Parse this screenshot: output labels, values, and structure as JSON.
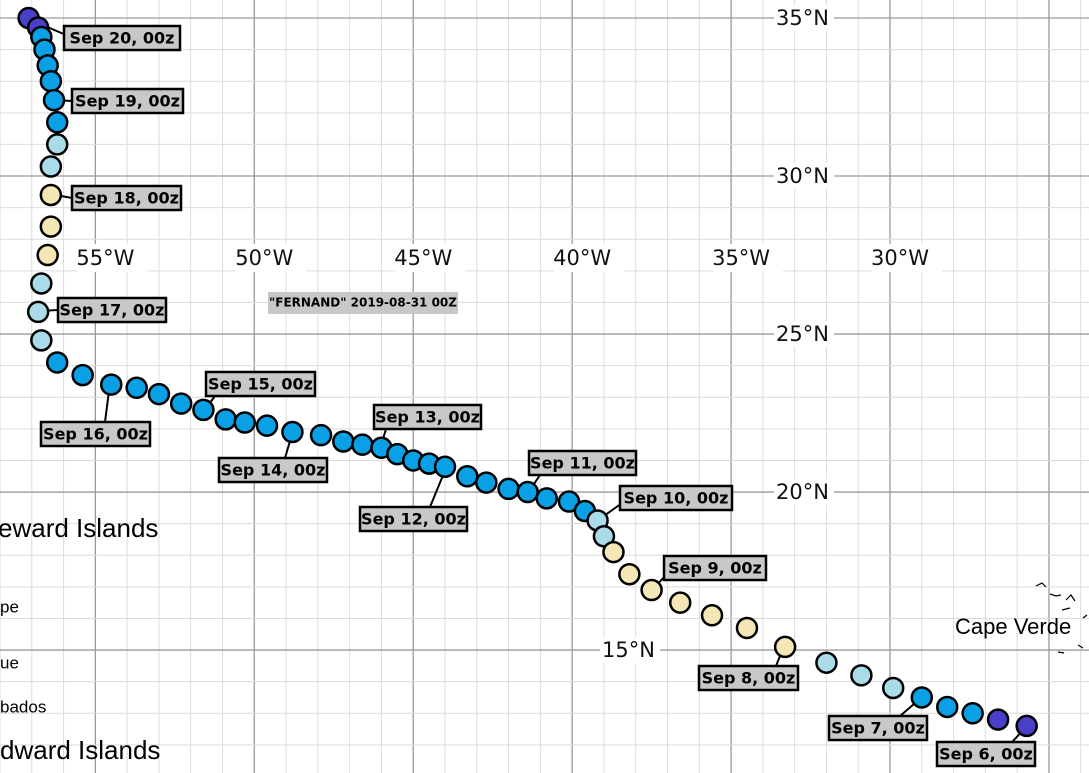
{
  "title": "\"FERNAND\" 2019-08-31 00Z",
  "map": {
    "xlim": [
      -58,
      -23.74
    ],
    "ylim": [
      11.11,
      35.57
    ],
    "xticks": [
      {
        "value": -55,
        "label": "55°W"
      },
      {
        "value": -50,
        "label": "50°W"
      },
      {
        "value": -45,
        "label": "45°W"
      },
      {
        "value": -40,
        "label": "40°W"
      },
      {
        "value": -35,
        "label": "35°W"
      },
      {
        "value": -30,
        "label": "30°W"
      }
    ],
    "yticks": [
      {
        "value": 35,
        "label": "35°N"
      },
      {
        "value": 30,
        "label": "30°N"
      },
      {
        "value": 25,
        "label": "25°N"
      },
      {
        "value": 20,
        "label": "20°N"
      },
      {
        "value": 15,
        "label": "15°N"
      }
    ]
  },
  "track": {
    "points": [
      {
        "lon": -57.1,
        "lat": 35.0,
        "color": "#4a3fc8"
      },
      {
        "lon": -56.8,
        "lat": 34.7,
        "color": "#4a3fc8"
      },
      {
        "lon": -56.7,
        "lat": 34.4,
        "color": "#0aa0e6"
      },
      {
        "lon": -56.6,
        "lat": 34.0,
        "color": "#0aa0e6"
      },
      {
        "lon": -56.5,
        "lat": 33.5,
        "color": "#0aa0e6"
      },
      {
        "lon": -56.4,
        "lat": 33.0,
        "color": "#0aa0e6"
      },
      {
        "lon": -56.3,
        "lat": 32.4,
        "color": "#0aa0e6"
      },
      {
        "lon": -56.2,
        "lat": 31.7,
        "color": "#0aa0e6"
      },
      {
        "lon": -56.2,
        "lat": 31.0,
        "color": "#a9dbe9"
      },
      {
        "lon": -56.4,
        "lat": 30.3,
        "color": "#a9dbe9"
      },
      {
        "lon": -56.4,
        "lat": 29.4,
        "color": "#f5e6b5"
      },
      {
        "lon": -56.4,
        "lat": 28.4,
        "color": "#f5e6b5"
      },
      {
        "lon": -56.5,
        "lat": 27.5,
        "color": "#f5e6b5"
      },
      {
        "lon": -56.7,
        "lat": 26.6,
        "color": "#a9dbe9"
      },
      {
        "lon": -56.8,
        "lat": 25.7,
        "color": "#a9dbe9"
      },
      {
        "lon": -56.7,
        "lat": 24.8,
        "color": "#a9dbe9"
      },
      {
        "lon": -56.2,
        "lat": 24.1,
        "color": "#0aa0e6"
      },
      {
        "lon": -55.4,
        "lat": 23.7,
        "color": "#0aa0e6"
      },
      {
        "lon": -54.5,
        "lat": 23.4,
        "color": "#0aa0e6"
      },
      {
        "lon": -53.7,
        "lat": 23.3,
        "color": "#0aa0e6"
      },
      {
        "lon": -53.0,
        "lat": 23.1,
        "color": "#0aa0e6"
      },
      {
        "lon": -52.3,
        "lat": 22.8,
        "color": "#0aa0e6"
      },
      {
        "lon": -51.6,
        "lat": 22.6,
        "color": "#0aa0e6"
      },
      {
        "lon": -50.9,
        "lat": 22.3,
        "color": "#0aa0e6"
      },
      {
        "lon": -50.3,
        "lat": 22.2,
        "color": "#0aa0e6"
      },
      {
        "lon": -49.6,
        "lat": 22.1,
        "color": "#0aa0e6"
      },
      {
        "lon": -48.8,
        "lat": 21.9,
        "color": "#0aa0e6"
      },
      {
        "lon": -47.9,
        "lat": 21.8,
        "color": "#0aa0e6"
      },
      {
        "lon": -47.2,
        "lat": 21.6,
        "color": "#0aa0e6"
      },
      {
        "lon": -46.6,
        "lat": 21.5,
        "color": "#0aa0e6"
      },
      {
        "lon": -46.0,
        "lat": 21.4,
        "color": "#0aa0e6"
      },
      {
        "lon": -45.5,
        "lat": 21.2,
        "color": "#0aa0e6"
      },
      {
        "lon": -45.0,
        "lat": 21.0,
        "color": "#0aa0e6"
      },
      {
        "lon": -44.5,
        "lat": 20.9,
        "color": "#0aa0e6"
      },
      {
        "lon": -44.0,
        "lat": 20.8,
        "color": "#0aa0e6"
      },
      {
        "lon": -43.3,
        "lat": 20.5,
        "color": "#0aa0e6"
      },
      {
        "lon": -42.7,
        "lat": 20.3,
        "color": "#0aa0e6"
      },
      {
        "lon": -42.0,
        "lat": 20.1,
        "color": "#0aa0e6"
      },
      {
        "lon": -41.4,
        "lat": 20.0,
        "color": "#0aa0e6"
      },
      {
        "lon": -40.8,
        "lat": 19.8,
        "color": "#0aa0e6"
      },
      {
        "lon": -40.1,
        "lat": 19.7,
        "color": "#0aa0e6"
      },
      {
        "lon": -39.6,
        "lat": 19.4,
        "color": "#0aa0e6"
      },
      {
        "lon": -39.2,
        "lat": 19.1,
        "color": "#a9dbe9"
      },
      {
        "lon": -39.0,
        "lat": 18.6,
        "color": "#a9dbe9"
      },
      {
        "lon": -38.7,
        "lat": 18.1,
        "color": "#f5e6b5"
      },
      {
        "lon": -38.2,
        "lat": 17.4,
        "color": "#f5e6b5"
      },
      {
        "lon": -37.5,
        "lat": 16.9,
        "color": "#f5e6b5"
      },
      {
        "lon": -36.6,
        "lat": 16.5,
        "color": "#f5e6b5"
      },
      {
        "lon": -35.6,
        "lat": 16.1,
        "color": "#f5e6b5"
      },
      {
        "lon": -34.5,
        "lat": 15.7,
        "color": "#f5e6b5"
      },
      {
        "lon": -33.3,
        "lat": 15.1,
        "color": "#f5e6b5"
      },
      {
        "lon": -32.0,
        "lat": 14.6,
        "color": "#a9dbe9"
      },
      {
        "lon": -30.9,
        "lat": 14.2,
        "color": "#a9dbe9"
      },
      {
        "lon": -29.9,
        "lat": 13.8,
        "color": "#a9dbe9"
      },
      {
        "lon": -29.0,
        "lat": 13.5,
        "color": "#0aa0e6"
      },
      {
        "lon": -28.2,
        "lat": 13.2,
        "color": "#0aa0e6"
      },
      {
        "lon": -27.4,
        "lat": 13.0,
        "color": "#0aa0e6"
      },
      {
        "lon": -26.6,
        "lat": 12.8,
        "color": "#4a3fc8"
      },
      {
        "lon": -25.7,
        "lat": 12.6,
        "color": "#4a3fc8"
      }
    ]
  },
  "labels": [
    "Sep 20, 00z",
    "Sep 19, 00z",
    "Sep 18, 00z",
    "Sep 17, 00z",
    "Sep 16, 00z",
    "Sep 15, 00z",
    "Sep 14, 00z",
    "Sep 13, 00z",
    "Sep 12, 00z",
    "Sep 11, 00z",
    "Sep 10, 00z",
    "Sep 9, 00z",
    "Sep 8, 00z",
    "Sep 7, 00z",
    "Sep 6, 00z"
  ],
  "places": [
    "eward Islands",
    "pe",
    "ue",
    "bados",
    "dward Islands",
    "Cape  Verde"
  ]
}
